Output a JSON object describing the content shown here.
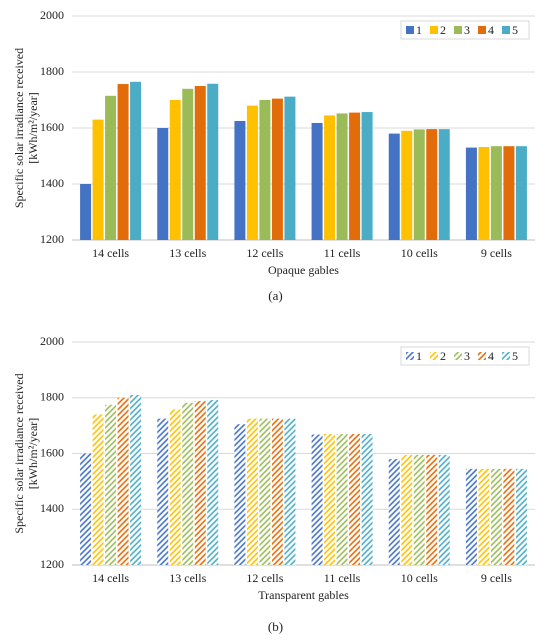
{
  "chart_data": [
    {
      "type": "bar",
      "caption": "(a)",
      "xlabel": "Opaque gables",
      "ylabel": [
        "Specific solar irradiance received",
        "[kWh/m²/year]"
      ],
      "categories": [
        "14 cells",
        "13 cells",
        "12 cells",
        "11 cells",
        "10 cells",
        "9 cells"
      ],
      "series": [
        {
          "name": "1",
          "color": "#4472c4",
          "values": [
            1400,
            1600,
            1625,
            1618,
            1580,
            1530
          ]
        },
        {
          "name": "2",
          "color": "#ffc000",
          "values": [
            1630,
            1700,
            1680,
            1645,
            1590,
            1532
          ]
        },
        {
          "name": "3",
          "color": "#9bbb59",
          "values": [
            1715,
            1740,
            1700,
            1652,
            1595,
            1535
          ]
        },
        {
          "name": "4",
          "color": "#e36c0a",
          "values": [
            1757,
            1750,
            1705,
            1655,
            1596,
            1535
          ]
        },
        {
          "name": "5",
          "color": "#4bacc6",
          "values": [
            1765,
            1758,
            1712,
            1657,
            1596,
            1535
          ]
        }
      ],
      "ylim": [
        1200,
        2000
      ],
      "yticks": [
        1200,
        1400,
        1600,
        1800,
        2000
      ],
      "grid": true,
      "legend": "upper right",
      "fill": "solid"
    },
    {
      "type": "bar",
      "caption": "(b)",
      "xlabel": "Transparent gables",
      "ylabel": [
        "Specific solar irradiance received",
        "[kWh/m²/year]"
      ],
      "categories": [
        "14 cells",
        "13 cells",
        "12 cells",
        "11 cells",
        "10 cells",
        "9 cells"
      ],
      "series": [
        {
          "name": "1",
          "color": "#4472c4",
          "values": [
            1600,
            1725,
            1705,
            1668,
            1580,
            1545
          ]
        },
        {
          "name": "2",
          "color": "#ffc000",
          "values": [
            1740,
            1758,
            1725,
            1670,
            1595,
            1545
          ]
        },
        {
          "name": "3",
          "color": "#9bbb59",
          "values": [
            1775,
            1782,
            1725,
            1670,
            1595,
            1545
          ]
        },
        {
          "name": "4",
          "color": "#e36c0a",
          "values": [
            1800,
            1788,
            1725,
            1670,
            1595,
            1545
          ]
        },
        {
          "name": "5",
          "color": "#4bacc6",
          "values": [
            1810,
            1792,
            1725,
            1670,
            1595,
            1545
          ]
        }
      ],
      "ylim": [
        1200,
        2000
      ],
      "yticks": [
        1200,
        1400,
        1600,
        1800,
        2000
      ],
      "grid": true,
      "legend": "upper right",
      "fill": "hatched"
    }
  ]
}
